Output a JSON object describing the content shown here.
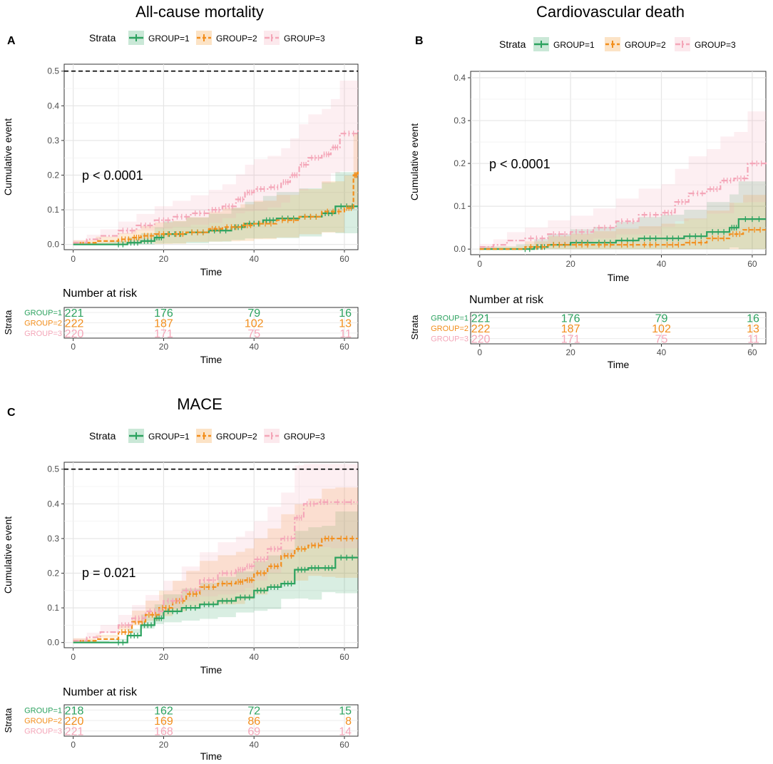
{
  "chart_data": [
    {
      "panel_label": "A",
      "type": "line",
      "title": "All-cause mortality",
      "xlabel": "Time",
      "ylabel": "Cumulative event",
      "xlim": [
        -2,
        63
      ],
      "ylim": [
        -0.015,
        0.52
      ],
      "xticks": [
        0,
        20,
        40,
        60
      ],
      "yticks": [
        0.0,
        0.1,
        0.2,
        0.3,
        0.4,
        0.5
      ],
      "ytick_labels": [
        "0.0",
        "0.1",
        "0.2",
        "0.3",
        "0.4",
        "0.5"
      ],
      "reference_line": 0.5,
      "p_value": "p < 0.0001",
      "legend": {
        "title": "Strata",
        "position": "top",
        "entries": [
          "GROUP=1",
          "GROUP=2",
          "GROUP=3"
        ]
      },
      "series": [
        {
          "name": "GROUP=1",
          "color": "#2ca25f",
          "x": [
            0,
            8,
            12,
            15,
            18,
            20,
            25,
            30,
            35,
            38,
            42,
            45,
            50,
            55,
            58,
            63
          ],
          "y": [
            0,
            0,
            0.005,
            0.01,
            0.02,
            0.03,
            0.035,
            0.04,
            0.05,
            0.06,
            0.07,
            0.075,
            0.08,
            0.09,
            0.11,
            0.11
          ]
        },
        {
          "name": "GROUP=2",
          "color": "#f28e1c",
          "x": [
            0,
            5,
            10,
            13,
            15,
            18,
            22,
            25,
            30,
            33,
            37,
            40,
            45,
            50,
            55,
            60,
            62,
            63
          ],
          "y": [
            0.005,
            0.01,
            0.015,
            0.02,
            0.025,
            0.03,
            0.03,
            0.035,
            0.045,
            0.05,
            0.055,
            0.06,
            0.07,
            0.08,
            0.095,
            0.105,
            0.2,
            0.21
          ]
        },
        {
          "name": "GROUP=3",
          "color": "#f4a6b8",
          "x": [
            0,
            3,
            6,
            10,
            14,
            18,
            22,
            26,
            30,
            33,
            36,
            38,
            40,
            43,
            46,
            48,
            50,
            52,
            55,
            57,
            59,
            63
          ],
          "y": [
            0.005,
            0.015,
            0.025,
            0.04,
            0.055,
            0.07,
            0.08,
            0.09,
            0.1,
            0.11,
            0.13,
            0.15,
            0.16,
            0.165,
            0.18,
            0.2,
            0.23,
            0.25,
            0.26,
            0.28,
            0.32,
            0.33
          ]
        }
      ],
      "risk_table": {
        "title": "Number at risk",
        "ylabel": "Strata",
        "xlabel": "Time",
        "times": [
          0,
          20,
          40,
          60
        ],
        "rows": [
          {
            "label": "GROUP=1",
            "values": [
              "221",
              "176",
              "79",
              "16"
            ]
          },
          {
            "label": "GROUP=2",
            "values": [
              "222",
              "187",
              "102",
              "13"
            ]
          },
          {
            "label": "GROUP=3",
            "values": [
              "220",
              "171",
              "75",
              "11"
            ]
          }
        ]
      }
    },
    {
      "panel_label": "B",
      "type": "line",
      "title": "Cardiovascular death",
      "xlabel": "Time",
      "ylabel": "Cumulative event",
      "xlim": [
        -2,
        63
      ],
      "ylim": [
        -0.013,
        0.415
      ],
      "xticks": [
        0,
        20,
        40,
        60
      ],
      "yticks": [
        0.0,
        0.1,
        0.2,
        0.3,
        0.4
      ],
      "ytick_labels": [
        "0.0",
        "0.1",
        "0.2",
        "0.3",
        "0.4"
      ],
      "reference_line": null,
      "p_value": "p < 0.0001",
      "legend": {
        "title": "Strata",
        "position": "top",
        "entries": [
          "GROUP=1",
          "GROUP=2",
          "GROUP=3"
        ]
      },
      "series": [
        {
          "name": "GROUP=1",
          "color": "#2ca25f",
          "x": [
            0,
            8,
            12,
            15,
            20,
            25,
            30,
            35,
            40,
            45,
            50,
            55,
            57,
            63
          ],
          "y": [
            0,
            0,
            0.005,
            0.01,
            0.015,
            0.015,
            0.02,
            0.025,
            0.025,
            0.03,
            0.04,
            0.05,
            0.07,
            0.07
          ]
        },
        {
          "name": "GROUP=2",
          "color": "#f28e1c",
          "x": [
            0,
            10,
            15,
            20,
            25,
            30,
            35,
            40,
            45,
            50,
            55,
            58,
            63
          ],
          "y": [
            0,
            0.005,
            0.01,
            0.01,
            0.01,
            0.01,
            0.01,
            0.01,
            0.015,
            0.025,
            0.035,
            0.045,
            0.045
          ]
        },
        {
          "name": "GROUP=3",
          "color": "#f4a6b8",
          "x": [
            0,
            3,
            6,
            10,
            15,
            20,
            25,
            30,
            35,
            40,
            43,
            46,
            50,
            53,
            56,
            59,
            63
          ],
          "y": [
            0.005,
            0.01,
            0.02,
            0.025,
            0.035,
            0.04,
            0.05,
            0.065,
            0.08,
            0.085,
            0.11,
            0.13,
            0.14,
            0.16,
            0.165,
            0.2,
            0.205
          ]
        }
      ],
      "risk_table": {
        "title": "Number at risk",
        "ylabel": "Strata",
        "xlabel": "Time",
        "times": [
          0,
          20,
          40,
          60
        ],
        "rows": [
          {
            "label": "GROUP=1",
            "values": [
              "221",
              "176",
              "79",
              "16"
            ]
          },
          {
            "label": "GROUP=2",
            "values": [
              "222",
              "187",
              "102",
              "13"
            ]
          },
          {
            "label": "GROUP=3",
            "values": [
              "220",
              "171",
              "75",
              "11"
            ]
          }
        ]
      }
    },
    {
      "panel_label": "C",
      "type": "line",
      "title": "MACE",
      "xlabel": "Time",
      "ylabel": "Cumulative event",
      "xlim": [
        -2,
        63
      ],
      "ylim": [
        -0.015,
        0.52
      ],
      "xticks": [
        0,
        20,
        40,
        60
      ],
      "yticks": [
        0.0,
        0.1,
        0.2,
        0.3,
        0.4,
        0.5
      ],
      "ytick_labels": [
        "0.0",
        "0.1",
        "0.2",
        "0.3",
        "0.4",
        "0.5"
      ],
      "reference_line": 0.5,
      "p_value": "p = 0.021",
      "legend": {
        "title": "Strata",
        "position": "top",
        "entries": [
          "GROUP=1",
          "GROUP=2",
          "GROUP=3"
        ]
      },
      "series": [
        {
          "name": "GROUP=1",
          "color": "#2ca25f",
          "x": [
            0,
            8,
            12,
            15,
            18,
            20,
            24,
            28,
            32,
            36,
            40,
            43,
            46,
            49,
            52,
            55,
            58,
            63
          ],
          "y": [
            0,
            0,
            0.02,
            0.05,
            0.07,
            0.09,
            0.1,
            0.11,
            0.12,
            0.13,
            0.15,
            0.16,
            0.17,
            0.21,
            0.215,
            0.215,
            0.245,
            0.245
          ]
        },
        {
          "name": "GROUP=2",
          "color": "#f28e1c",
          "x": [
            0,
            5,
            10,
            13,
            16,
            19,
            22,
            25,
            28,
            32,
            36,
            38,
            40,
            43,
            46,
            49,
            52,
            55,
            58,
            63
          ],
          "y": [
            0.005,
            0.01,
            0.03,
            0.06,
            0.08,
            0.1,
            0.12,
            0.14,
            0.16,
            0.17,
            0.175,
            0.18,
            0.2,
            0.22,
            0.25,
            0.27,
            0.28,
            0.3,
            0.3,
            0.3
          ]
        },
        {
          "name": "GROUP=3",
          "color": "#f4a6b8",
          "x": [
            0,
            3,
            6,
            10,
            13,
            16,
            20,
            24,
            28,
            32,
            36,
            38,
            40,
            43,
            46,
            49,
            51,
            54,
            57,
            63
          ],
          "y": [
            0.005,
            0.015,
            0.03,
            0.05,
            0.07,
            0.09,
            0.12,
            0.15,
            0.18,
            0.2,
            0.21,
            0.22,
            0.24,
            0.27,
            0.3,
            0.36,
            0.4,
            0.405,
            0.405,
            0.405
          ]
        }
      ],
      "risk_table": {
        "title": "Number at risk",
        "ylabel": "Strata",
        "xlabel": "Time",
        "times": [
          0,
          20,
          40,
          60
        ],
        "rows": [
          {
            "label": "GROUP=1",
            "values": [
              "218",
              "162",
              "72",
              "15"
            ]
          },
          {
            "label": "GROUP=2",
            "values": [
              "220",
              "169",
              "86",
              "8"
            ]
          },
          {
            "label": "GROUP=3",
            "values": [
              "221",
              "168",
              "69",
              "14"
            ]
          }
        ]
      }
    }
  ]
}
